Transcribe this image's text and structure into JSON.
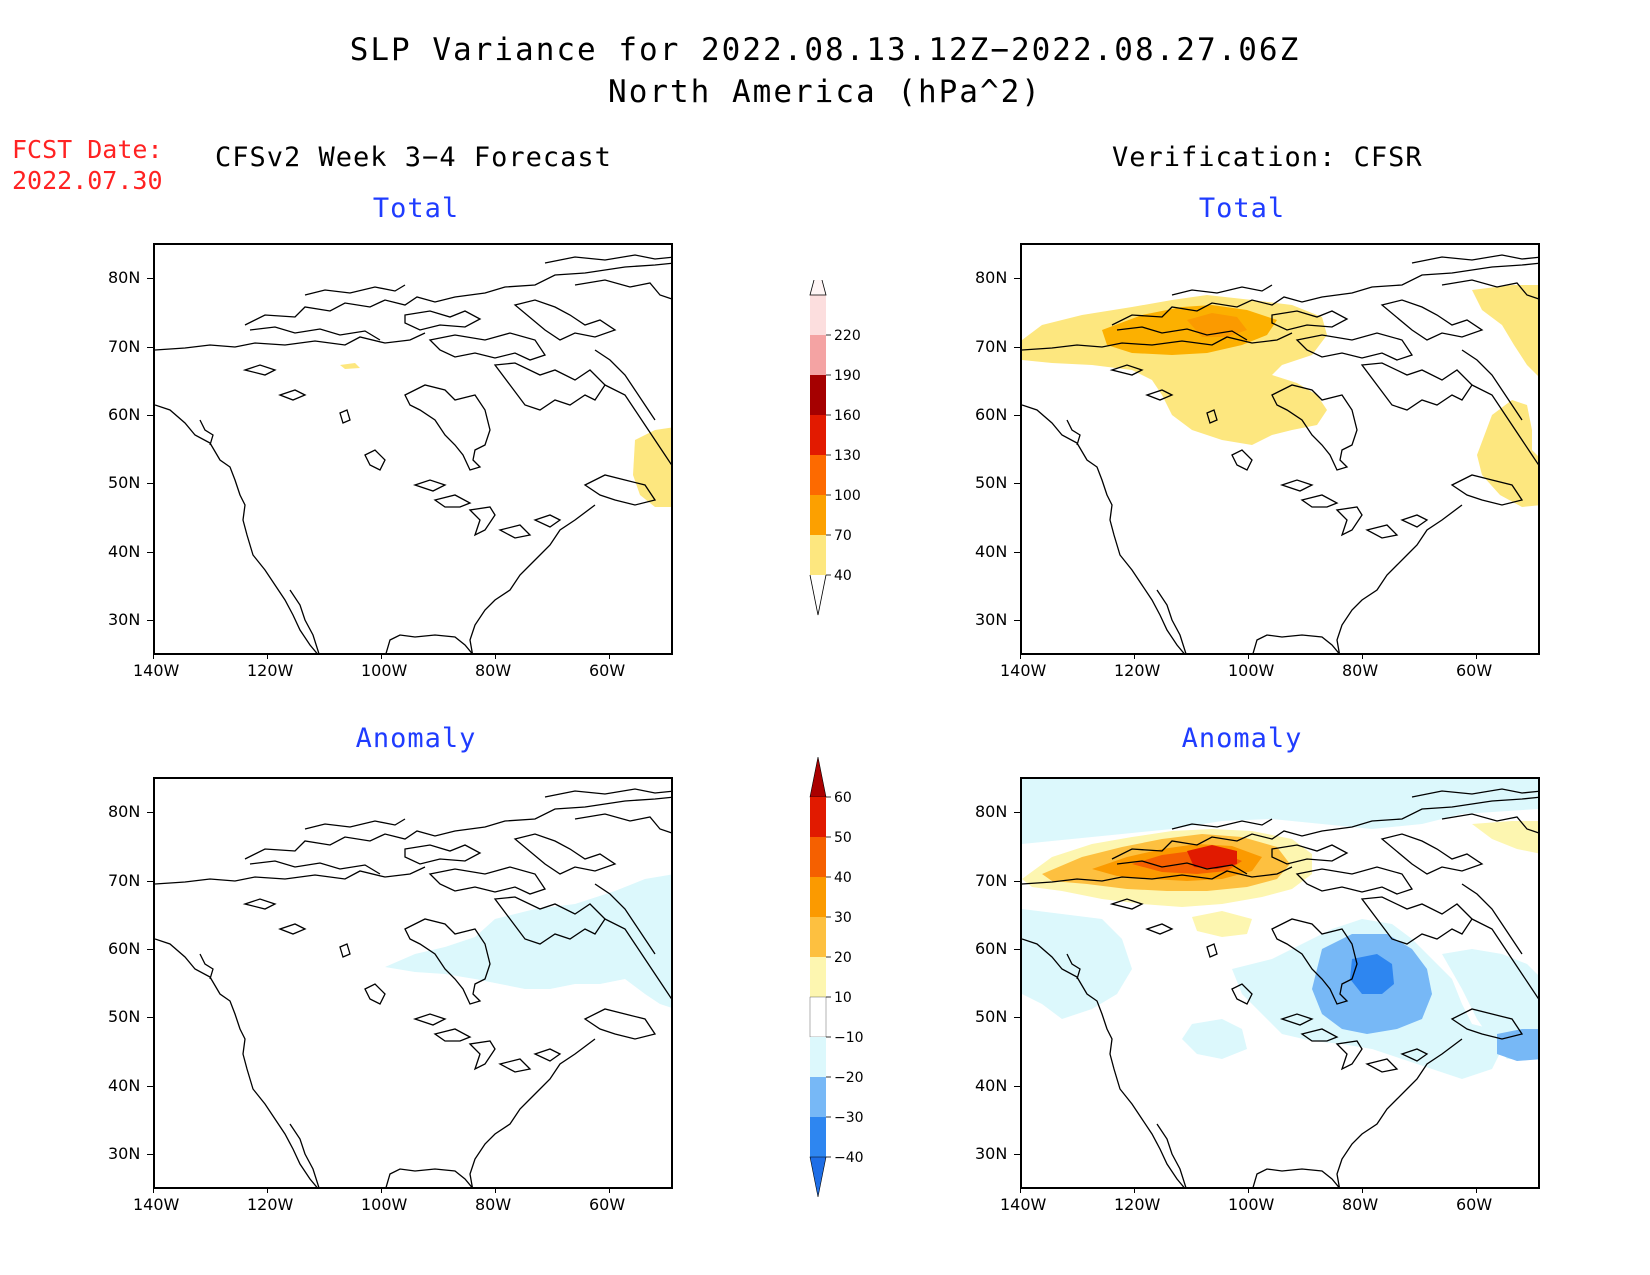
{
  "title": {
    "line1": "SLP Variance for 2022.08.13.12Z−2022.08.27.06Z",
    "line2": "North America (hPa^2)"
  },
  "fcst": {
    "label": "FCST Date:",
    "date": "2022.07.30"
  },
  "columns": {
    "left_header": "CFSv2 Week 3−4 Forecast",
    "right_header": "Verification: CFSR"
  },
  "panels": {
    "top_left_title": "Total",
    "top_right_title": "Total",
    "bottom_left_title": "Anomaly",
    "bottom_right_title": "Anomaly"
  },
  "axes": {
    "lat_labels": [
      "80N",
      "70N",
      "60N",
      "50N",
      "40N",
      "30N"
    ],
    "lon_labels": [
      "140W",
      "120W",
      "100W",
      "80W",
      "60W"
    ]
  },
  "colorbar_total": {
    "levels": [
      "40",
      "70",
      "100",
      "130",
      "160",
      "190",
      "220"
    ],
    "colors": [
      "#fde77f",
      "#fca000",
      "#fd6a00",
      "#e21a00",
      "#a50000",
      "#f4a3a3",
      "#fcdede"
    ]
  },
  "colorbar_anomaly": {
    "levels": [
      "−40",
      "−30",
      "−20",
      "−10",
      "10",
      "20",
      "30",
      "40",
      "50",
      "60"
    ],
    "colors": [
      "#1e6ee6",
      "#2e86f0",
      "#77b8f6",
      "#dcf8fc",
      "#ffffff",
      "#fdf6b0",
      "#fdc040",
      "#fb9a00",
      "#f56000",
      "#e11a00",
      "#aa0000"
    ]
  }
}
